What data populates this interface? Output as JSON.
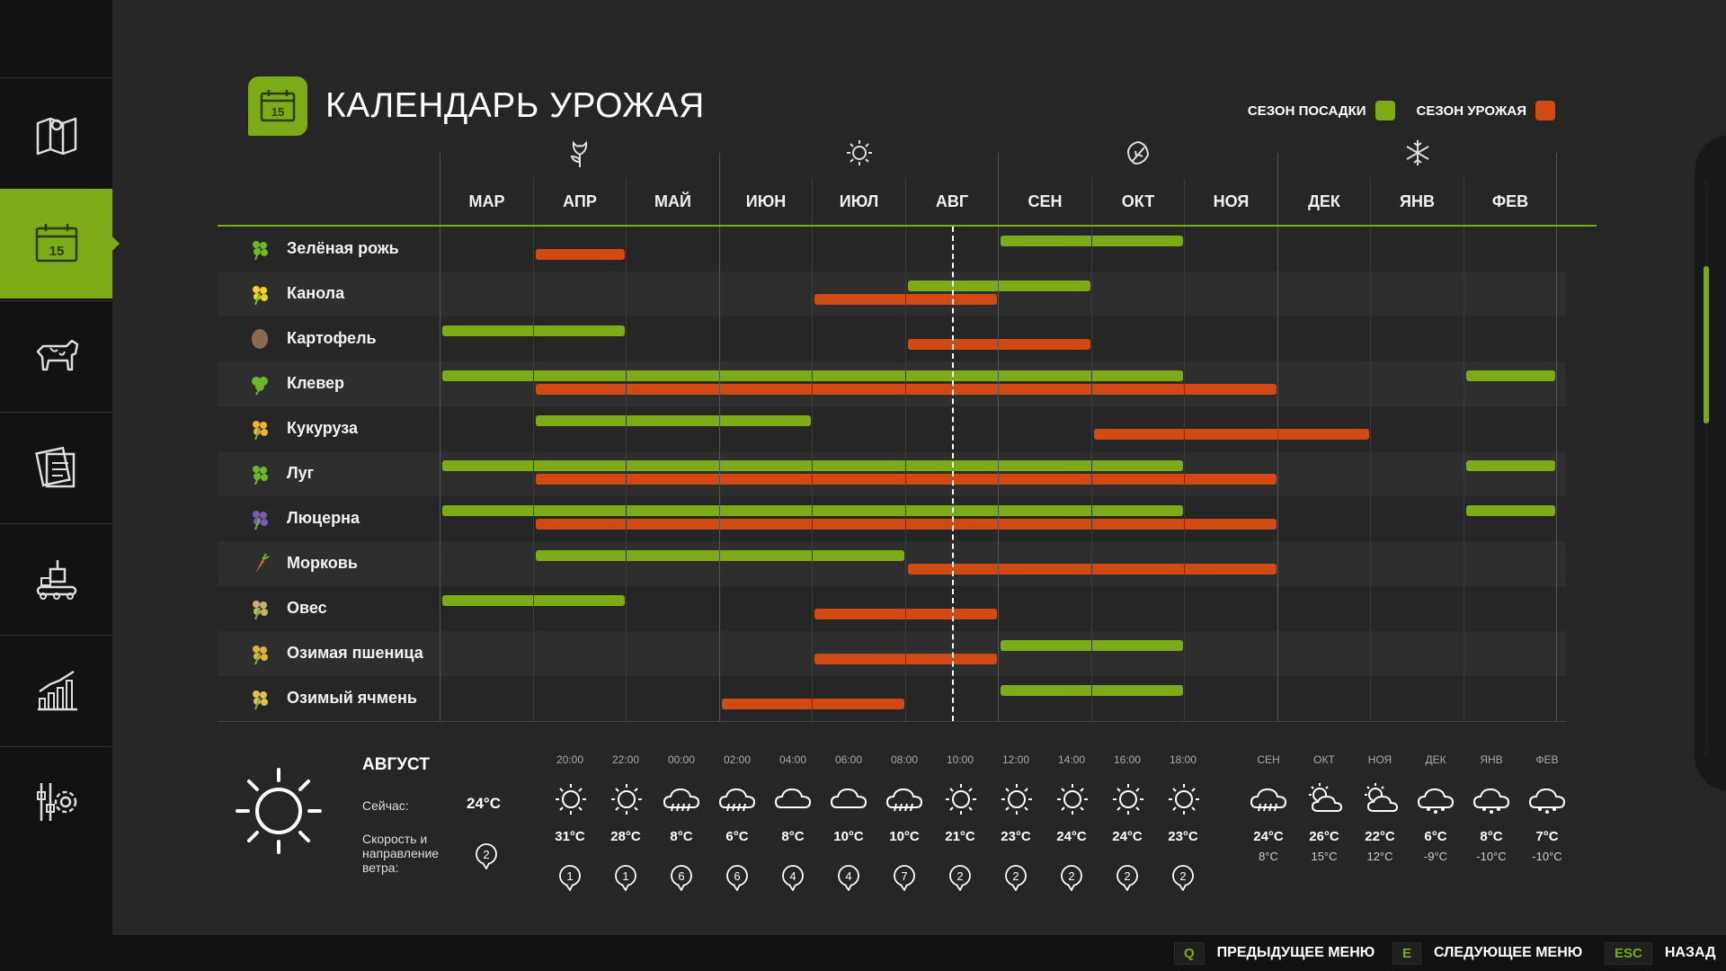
{
  "page": {
    "title": "КАЛЕНДАРЬ УРОЖАЯ",
    "title_icon_day": "15"
  },
  "legend": {
    "planting": {
      "label": "СЕЗОН ПОСАДКИ",
      "color": "#7dab17"
    },
    "harvest": {
      "label": "СЕЗОН УРОЖАЯ",
      "color": "#d14a14"
    }
  },
  "sidebar": {
    "items": [
      {
        "icon": "map-icon"
      },
      {
        "icon": "calendar-icon",
        "active": true,
        "day": "15"
      },
      {
        "icon": "cow-icon"
      },
      {
        "icon": "contracts-icon"
      },
      {
        "icon": "production-icon"
      },
      {
        "icon": "statistics-icon"
      },
      {
        "icon": "settings-icon"
      }
    ]
  },
  "seasons": [
    "spring-icon",
    "summer-icon",
    "autumn-icon",
    "winter-icon"
  ],
  "months": [
    "МАР",
    "АПР",
    "МАЙ",
    "ИЮН",
    "ИЮЛ",
    "АВГ",
    "СЕН",
    "ОКТ",
    "НОЯ",
    "ДЕК",
    "ЯНВ",
    "ФЕВ"
  ],
  "current_month_position": 5.5,
  "crops": [
    {
      "name": "Зелёная рожь",
      "icon": "rye-icon",
      "plant": [
        [
          6,
          8
        ]
      ],
      "harvest": [
        [
          1,
          2
        ]
      ]
    },
    {
      "name": "Канола",
      "icon": "canola-icon",
      "plant": [
        [
          5,
          7
        ]
      ],
      "harvest": [
        [
          4,
          6
        ]
      ]
    },
    {
      "name": "Картофель",
      "icon": "potato-icon",
      "plant": [
        [
          0,
          2
        ]
      ],
      "harvest": [
        [
          5,
          7
        ]
      ]
    },
    {
      "name": "Клевер",
      "icon": "clover-icon",
      "plant": [
        [
          0,
          8
        ],
        [
          11,
          12
        ]
      ],
      "harvest": [
        [
          1,
          9
        ]
      ]
    },
    {
      "name": "Кукуруза",
      "icon": "corn-icon",
      "plant": [
        [
          1,
          4
        ]
      ],
      "harvest": [
        [
          7,
          10
        ]
      ]
    },
    {
      "name": "Луг",
      "icon": "grass-icon",
      "plant": [
        [
          0,
          8
        ],
        [
          11,
          12
        ]
      ],
      "harvest": [
        [
          1,
          9
        ]
      ]
    },
    {
      "name": "Люцерна",
      "icon": "alfalfa-icon",
      "plant": [
        [
          0,
          8
        ],
        [
          11,
          12
        ]
      ],
      "harvest": [
        [
          1,
          9
        ]
      ]
    },
    {
      "name": "Морковь",
      "icon": "carrot-icon",
      "plant": [
        [
          1,
          5
        ]
      ],
      "harvest": [
        [
          5,
          9
        ]
      ]
    },
    {
      "name": "Овес",
      "icon": "oat-icon",
      "plant": [
        [
          0,
          2
        ]
      ],
      "harvest": [
        [
          4,
          6
        ]
      ]
    },
    {
      "name": "Озимая пшеница",
      "icon": "wheat-icon",
      "plant": [
        [
          6,
          8
        ]
      ],
      "harvest": [
        [
          4,
          6
        ]
      ]
    },
    {
      "name": "Озимый ячмень",
      "icon": "barley-icon",
      "plant": [
        [
          6,
          8
        ]
      ],
      "harvest": [
        [
          3,
          5
        ]
      ]
    }
  ],
  "weather": {
    "month": "АВГУСТ",
    "now_label": "Сейчас:",
    "now_value": "24°C",
    "wind_label": "Скорость и направление ветра:",
    "wind_value": "2",
    "hourly": [
      {
        "time": "20:00",
        "icon": "sun",
        "temp": "31°C",
        "wind": "1"
      },
      {
        "time": "22:00",
        "icon": "sun",
        "temp": "28°C",
        "wind": "1"
      },
      {
        "time": "00:00",
        "icon": "rain",
        "temp": "8°C",
        "wind": "6"
      },
      {
        "time": "02:00",
        "icon": "rain",
        "temp": "6°C",
        "wind": "6"
      },
      {
        "time": "04:00",
        "icon": "cloud",
        "temp": "8°C",
        "wind": "4"
      },
      {
        "time": "06:00",
        "icon": "cloud",
        "temp": "10°C",
        "wind": "4"
      },
      {
        "time": "08:00",
        "icon": "rain",
        "temp": "10°C",
        "wind": "7"
      },
      {
        "time": "10:00",
        "icon": "sun",
        "temp": "21°C",
        "wind": "2"
      },
      {
        "time": "12:00",
        "icon": "sun",
        "temp": "23°C",
        "wind": "2"
      },
      {
        "time": "14:00",
        "icon": "sun",
        "temp": "24°C",
        "wind": "2"
      },
      {
        "time": "16:00",
        "icon": "sun",
        "temp": "24°C",
        "wind": "2"
      },
      {
        "time": "18:00",
        "icon": "sun",
        "temp": "23°C",
        "wind": "2"
      }
    ],
    "monthly": [
      {
        "month": "СЕН",
        "icon": "rain",
        "high": "24°C",
        "low": "8°C"
      },
      {
        "month": "ОКТ",
        "icon": "partly",
        "high": "26°C",
        "low": "15°C"
      },
      {
        "month": "НОЯ",
        "icon": "partly",
        "high": "22°C",
        "low": "12°C"
      },
      {
        "month": "ДЕК",
        "icon": "snow",
        "high": "6°C",
        "low": "-9°C"
      },
      {
        "month": "ЯНВ",
        "icon": "snow",
        "high": "8°C",
        "low": "-10°C"
      },
      {
        "month": "ФЕВ",
        "icon": "snow",
        "high": "7°C",
        "low": "-10°C"
      }
    ]
  },
  "footer": {
    "prev": {
      "key": "Q",
      "label": "ПРЕДЫДУЩЕЕ МЕНЮ"
    },
    "next": {
      "key": "E",
      "label": "СЛЕДУЮЩЕЕ МЕНЮ"
    },
    "back": {
      "key": "ESC",
      "label": "НАЗАД"
    }
  }
}
